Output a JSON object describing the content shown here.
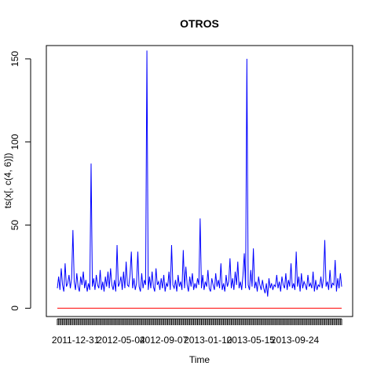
{
  "chart_data": {
    "type": "line",
    "title": "OTROS",
    "xlabel": "Time",
    "ylabel": "ts(x[, c(4, 6)])",
    "ylim": [
      -5,
      158
    ],
    "yticks": [
      0,
      50,
      100,
      150
    ],
    "x_range": [
      1,
      220
    ],
    "x_tick_labels": [
      {
        "x": 15,
        "label": "2011-12-31"
      },
      {
        "x": 50,
        "label": "2012-05-04"
      },
      {
        "x": 83,
        "label": "2012-09-07"
      },
      {
        "x": 117,
        "label": "2013-01-10"
      },
      {
        "x": 150,
        "label": "2013-05-15"
      },
      {
        "x": 184,
        "label": "2013-09-24"
      }
    ],
    "grid": false,
    "series": [
      {
        "color": "#0000ff",
        "values": [
          12,
          19,
          11,
          24,
          14,
          10,
          27,
          13,
          15,
          20,
          12,
          18,
          47,
          16,
          11,
          21,
          13,
          10,
          19,
          14,
          22,
          12,
          17,
          10,
          15,
          11,
          87,
          13,
          18,
          11,
          20,
          14,
          12,
          23,
          11,
          16,
          10,
          19,
          13,
          22,
          12,
          24,
          14,
          11,
          17,
          10,
          38,
          13,
          15,
          19,
          11,
          22,
          12,
          28,
          14,
          13,
          20,
          34,
          12,
          18,
          11,
          15,
          34,
          13,
          10,
          21,
          12,
          17,
          14,
          155,
          11,
          19,
          12,
          22,
          13,
          10,
          24,
          14,
          16,
          11,
          18,
          12,
          20,
          10,
          15,
          13,
          22,
          11,
          38,
          14,
          12,
          17,
          10,
          20,
          13,
          16,
          11,
          35,
          12,
          25,
          14,
          10,
          19,
          13,
          21,
          11,
          15,
          12,
          18,
          14,
          54,
          12,
          20,
          11,
          16,
          13,
          23,
          12,
          10,
          18,
          14,
          11,
          21,
          13,
          17,
          12,
          27,
          11,
          15,
          10,
          20,
          13,
          16,
          30,
          12,
          18,
          11,
          22,
          14,
          28,
          12,
          16,
          11,
          20,
          33,
          12,
          150,
          14,
          11,
          23,
          13,
          36,
          12,
          16,
          10,
          19,
          14,
          11,
          17,
          12,
          9,
          15,
          7,
          18,
          12,
          15,
          11,
          14,
          13,
          20,
          12,
          16,
          10,
          19,
          14,
          12,
          21,
          11,
          17,
          13,
          27,
          12,
          15,
          11,
          34,
          13,
          19,
          10,
          21,
          12,
          16,
          14,
          11,
          20,
          13,
          15,
          12,
          22,
          10,
          17,
          11,
          14,
          13,
          19,
          12,
          18,
          41,
          13,
          16,
          11,
          23,
          12,
          15,
          14,
          29,
          10,
          18,
          12,
          21,
          13
        ]
      },
      {
        "color": "#ff0000",
        "values": [
          0,
          0
        ]
      }
    ]
  }
}
